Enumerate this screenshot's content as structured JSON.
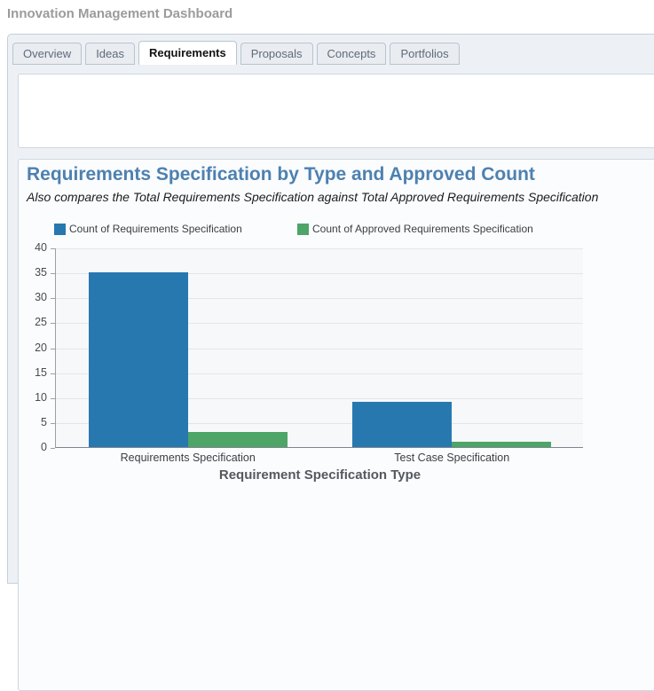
{
  "page": {
    "title": "Innovation Management Dashboard"
  },
  "tabs": [
    {
      "label": "Overview",
      "active": false
    },
    {
      "label": "Ideas",
      "active": false
    },
    {
      "label": "Requirements",
      "active": true
    },
    {
      "label": "Proposals",
      "active": false
    },
    {
      "label": "Concepts",
      "active": false
    },
    {
      "label": "Portfolios",
      "active": false
    }
  ],
  "chart_data": {
    "type": "bar",
    "title": "Requirements Specification by Type and Approved Count",
    "subtitle": "Also compares the Total Requirements Specification against Total Approved Requirements Specification",
    "categories": [
      "Requirements Specification",
      "Test Case Specification"
    ],
    "series": [
      {
        "name": "Count of Requirements Specification",
        "color": "#2878b0",
        "values": [
          35,
          9
        ]
      },
      {
        "name": "Count of Approved Requirements Specification",
        "color": "#4da567",
        "values": [
          3,
          1
        ]
      }
    ],
    "xlabel": "Requirement Specification Type",
    "ylabel": "",
    "ylim": [
      0,
      40
    ],
    "ytick_step": 5,
    "grid": true,
    "legend_position": "top"
  },
  "colors": {
    "series_blue": "#2878b0",
    "series_green": "#4da567",
    "heading_blue": "#4d81b0"
  }
}
